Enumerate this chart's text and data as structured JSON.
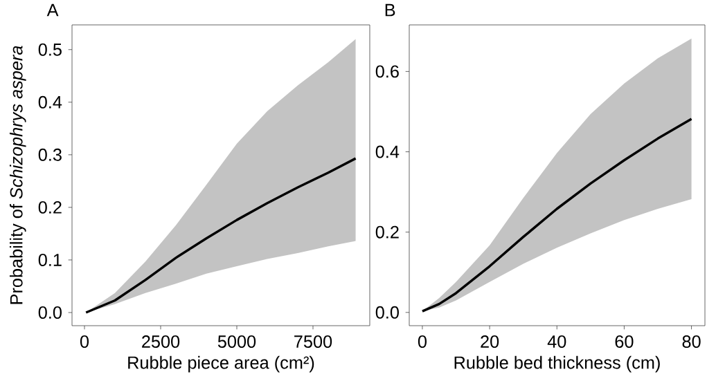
{
  "chart_data": [
    {
      "type": "line",
      "title": "A",
      "xlabel": "Rubble piece area (cm²)",
      "ylabel": "Probability of *Schizophrys aspera*",
      "x": [
        50,
        1000,
        2000,
        3000,
        4000,
        5000,
        6000,
        7000,
        8000,
        8900
      ],
      "series": [
        {
          "color": "#000000",
          "values": [
            0,
            0.023,
            0.062,
            0.104,
            0.141,
            0.176,
            0.208,
            0.238,
            0.266,
            0.293
          ],
          "lower": [
            0,
            0.016,
            0.037,
            0.055,
            0.074,
            0.088,
            0.102,
            0.113,
            0.126,
            0.136
          ],
          "upper": [
            0,
            0.037,
            0.097,
            0.166,
            0.243,
            0.321,
            0.383,
            0.432,
            0.476,
            0.52
          ]
        }
      ],
      "xlim": [
        -409,
        9364
      ],
      "ylim": [
        -0.025,
        0.547
      ],
      "xticks": [
        0,
        2500,
        5000,
        7500
      ],
      "yticks": [
        {
          "value": 0,
          "label": "0.0"
        },
        0.1,
        0.2,
        0.3,
        0.4,
        0.5
      ],
      "grid": false,
      "marker": "none",
      "line_style": "solid"
    },
    {
      "type": "line",
      "title": "B",
      "xlabel": "Rubble bed thickness (cm)",
      "x": [
        0,
        5,
        10,
        20,
        30,
        40,
        50,
        60,
        70,
        80
      ],
      "series": [
        {
          "color": "#000000",
          "values": [
            0.003,
            0.021,
            0.048,
            0.115,
            0.188,
            0.258,
            0.321,
            0.379,
            0.433,
            0.482
          ],
          "lower": [
            0.003,
            0.012,
            0.03,
            0.076,
            0.121,
            0.161,
            0.197,
            0.23,
            0.258,
            0.282
          ],
          "upper": [
            0.003,
            0.036,
            0.076,
            0.167,
            0.285,
            0.397,
            0.494,
            0.57,
            0.633,
            0.682
          ]
        }
      ],
      "xlim": [
        -3.9,
        84.0
      ],
      "ylim": [
        -0.033,
        0.716
      ],
      "xticks": [
        0,
        20,
        40,
        60,
        80
      ],
      "yticks": [
        {
          "value": 0,
          "label": "0.0"
        },
        0.2,
        0.4,
        0.6
      ],
      "grid": false,
      "marker": "none",
      "line_style": "solid"
    }
  ]
}
